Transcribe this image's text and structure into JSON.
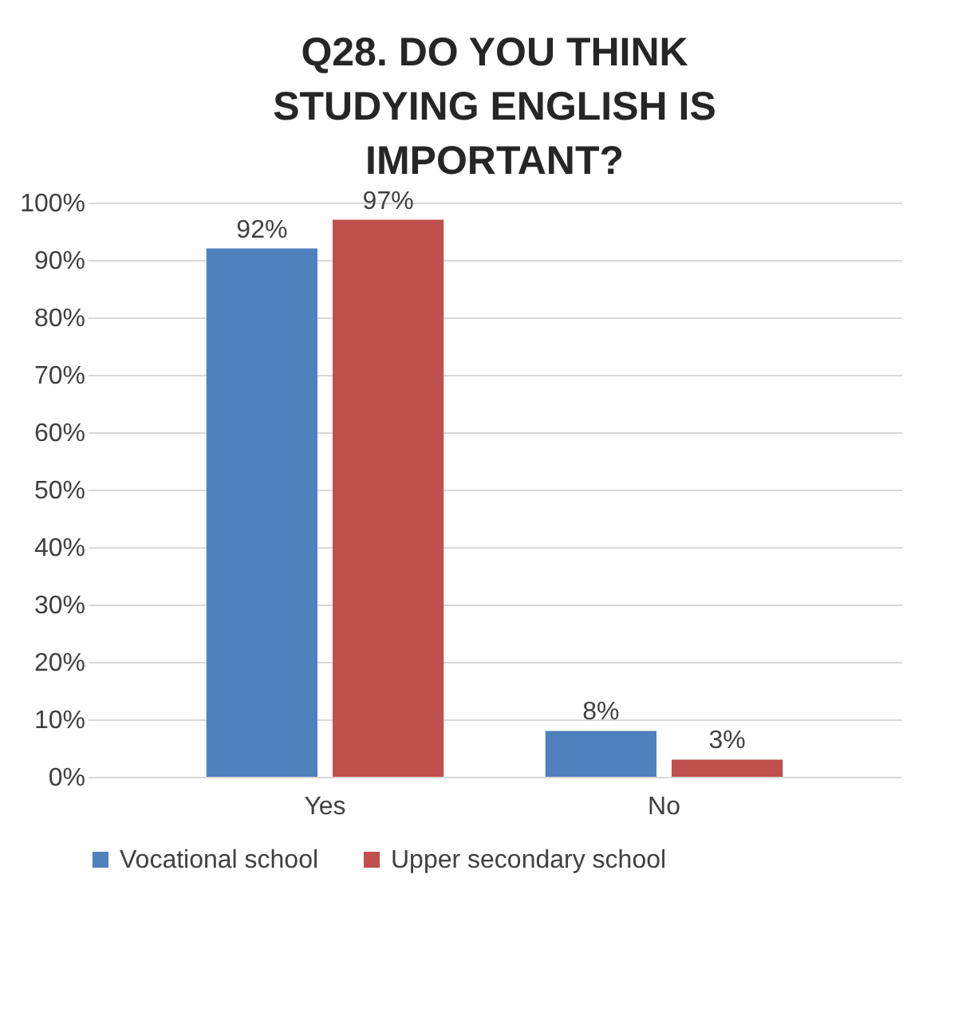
{
  "chart_data": {
    "type": "bar",
    "title": "Q28. DO YOU THINK STUDYING ENGLISH IS IMPORTANT?",
    "categories": [
      "Yes",
      "No"
    ],
    "series": [
      {
        "name": "Vocational school",
        "color": "#4f81bd",
        "values": [
          92,
          8
        ],
        "value_labels": [
          "92%",
          "8%"
        ]
      },
      {
        "name": "Upper secondary school",
        "color": "#c0504d",
        "values": [
          97,
          3
        ],
        "value_labels": [
          "97%",
          "3%"
        ]
      }
    ],
    "ylim": [
      0,
      100
    ],
    "yticks": [
      {
        "value": 0,
        "label": "0%"
      },
      {
        "value": 10,
        "label": "10%"
      },
      {
        "value": 20,
        "label": "20%"
      },
      {
        "value": 30,
        "label": "30%"
      },
      {
        "value": 40,
        "label": "40%"
      },
      {
        "value": 50,
        "label": "50%"
      },
      {
        "value": 60,
        "label": "60%"
      },
      {
        "value": 70,
        "label": "70%"
      },
      {
        "value": 80,
        "label": "80%"
      },
      {
        "value": 90,
        "label": "90%"
      },
      {
        "value": 100,
        "label": "100%"
      }
    ],
    "grid": "y",
    "legend": "bottom"
  }
}
